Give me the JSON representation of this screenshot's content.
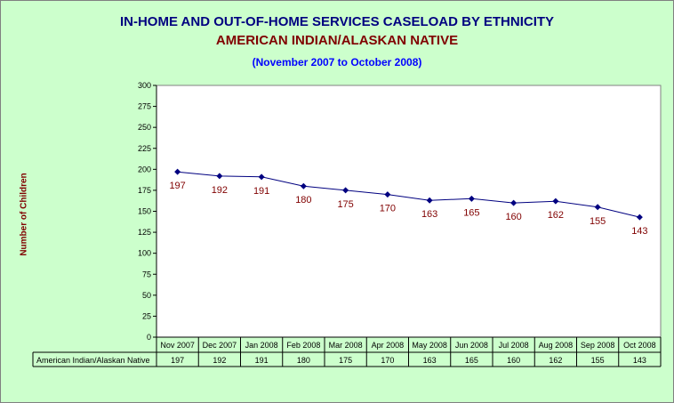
{
  "chart_data": {
    "type": "line",
    "title": "IN-HOME AND OUT-OF-HOME SERVICES CASELOAD BY ETHNICITY",
    "subtitle": "AMERICAN INDIAN/ALASKAN NATIVE",
    "period": "(November 2007 to October 2008)",
    "xlabel": "",
    "ylabel": "Number of Children",
    "ylim": [
      0,
      300
    ],
    "ytick_step": 25,
    "yticks": [
      "0",
      "25",
      "50",
      "75",
      "100",
      "125",
      "150",
      "175",
      "200",
      "225",
      "250",
      "275",
      "300"
    ],
    "grid": false,
    "categories": [
      "Nov 2007",
      "Dec 2007",
      "Jan 2008",
      "Feb 2008",
      "Mar 2008",
      "Apr 2008",
      "May 2008",
      "Jun 2008",
      "Jul 2008",
      "Aug 2008",
      "Sep 2008",
      "Oct 2008"
    ],
    "series": [
      {
        "name": "American Indian/Alaskan Native",
        "values": [
          197,
          192,
          191,
          180,
          175,
          170,
          163,
          165,
          160,
          162,
          155,
          143
        ]
      }
    ],
    "data_table": true,
    "colors": {
      "background": "#ccffcc",
      "plot": "#ffffff",
      "line": "#000080",
      "marker": "#000080",
      "data_label": "#800000",
      "title": "#000080",
      "subtitle": "#800000",
      "period": "#0000ff"
    }
  }
}
